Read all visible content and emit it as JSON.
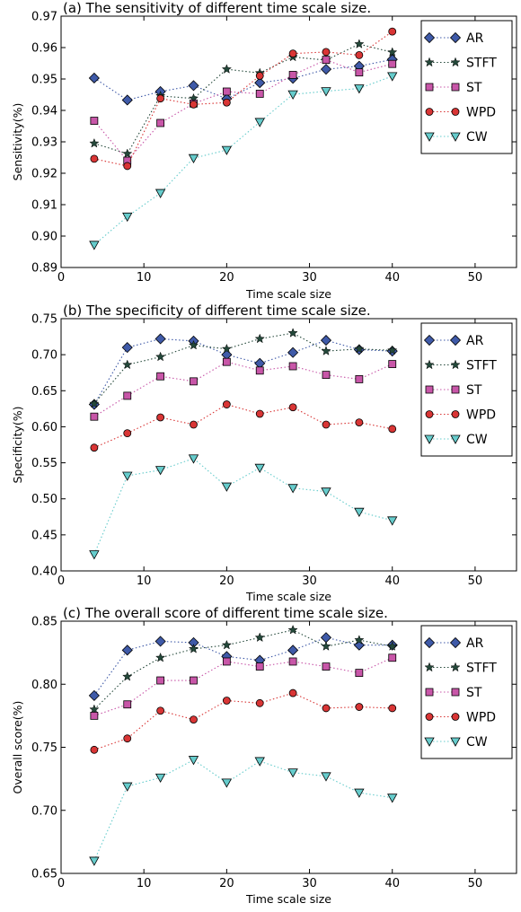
{
  "legend": {
    "placement": "upper-right",
    "labels": [
      "AR",
      "STFT",
      "ST",
      "WPD",
      "CW"
    ]
  },
  "series_style": {
    "AR": {
      "color": "#3f5aa8",
      "marker": "diamond"
    },
    "STFT": {
      "color": "#24483a",
      "marker": "star"
    },
    "ST": {
      "color": "#c856a8",
      "marker": "square"
    },
    "WPD": {
      "color": "#d93535",
      "marker": "circle"
    },
    "CW": {
      "color": "#66cccc",
      "marker": "triangle-down"
    }
  },
  "chart_data": [
    {
      "type": "line",
      "title": "(a) The sensitivity of different time scale size.",
      "xlabel": "Time scale size",
      "ylabel": "Sensitivity(%)",
      "xlim": [
        0,
        55
      ],
      "ylim": [
        0.89,
        0.97
      ],
      "xticks": [
        "0",
        "10",
        "20",
        "30",
        "40",
        "50"
      ],
      "yticks": [
        "0.89",
        "0.90",
        "0.91",
        "0.92",
        "0.93",
        "0.94",
        "0.95",
        "0.96",
        "0.97"
      ],
      "x": [
        4,
        8,
        12,
        16,
        20,
        24,
        28,
        32,
        36,
        40
      ],
      "series": [
        {
          "name": "AR",
          "values": [
            0.9503,
            0.9433,
            0.946,
            0.9479,
            0.9437,
            0.9488,
            0.9502,
            0.9531,
            0.9541,
            0.9562
          ]
        },
        {
          "name": "STFT",
          "values": [
            0.9295,
            0.9262,
            0.9446,
            0.9438,
            0.9531,
            0.9519,
            0.957,
            0.956,
            0.9611,
            0.9585
          ]
        },
        {
          "name": "ST",
          "values": [
            0.9367,
            0.924,
            0.936,
            0.9422,
            0.946,
            0.9453,
            0.9513,
            0.9561,
            0.9521,
            0.9548
          ]
        },
        {
          "name": "WPD",
          "values": [
            0.9246,
            0.9223,
            0.9438,
            0.9419,
            0.9425,
            0.951,
            0.9581,
            0.9586,
            0.9576,
            0.9651
          ]
        },
        {
          "name": "CW",
          "values": [
            0.8972,
            0.9062,
            0.9137,
            0.9248,
            0.9274,
            0.9363,
            0.9451,
            0.9461,
            0.947,
            0.9509
          ]
        }
      ]
    },
    {
      "type": "line",
      "title": "(b) The specificity of different time scale size.",
      "xlabel": "Time scale size",
      "ylabel": "Specificity(%)",
      "xlim": [
        0,
        55
      ],
      "ylim": [
        0.4,
        0.75
      ],
      "xticks": [
        "0",
        "10",
        "20",
        "30",
        "40",
        "50"
      ],
      "yticks": [
        "0.40",
        "0.45",
        "0.50",
        "0.55",
        "0.60",
        "0.65",
        "0.70",
        "0.75"
      ],
      "x": [
        4,
        8,
        12,
        16,
        20,
        24,
        28,
        32,
        36,
        40
      ],
      "series": [
        {
          "name": "AR",
          "values": [
            0.631,
            0.71,
            0.722,
            0.719,
            0.7,
            0.688,
            0.703,
            0.72,
            0.707,
            0.705
          ]
        },
        {
          "name": "STFT",
          "values": [
            0.632,
            0.686,
            0.697,
            0.713,
            0.708,
            0.722,
            0.73,
            0.705,
            0.708,
            0.706
          ]
        },
        {
          "name": "ST",
          "values": [
            0.614,
            0.643,
            0.67,
            0.663,
            0.69,
            0.678,
            0.684,
            0.672,
            0.666,
            0.687
          ]
        },
        {
          "name": "WPD",
          "values": [
            0.571,
            0.591,
            0.613,
            0.603,
            0.631,
            0.618,
            0.627,
            0.603,
            0.606,
            0.597
          ]
        },
        {
          "name": "CW",
          "values": [
            0.423,
            0.532,
            0.54,
            0.556,
            0.517,
            0.543,
            0.515,
            0.51,
            0.482,
            0.47
          ]
        }
      ]
    },
    {
      "type": "line",
      "title": "(c) The overall score of different time scale size.",
      "xlabel": "Time scale size",
      "ylabel": "Overall score(%)",
      "xlim": [
        0,
        55
      ],
      "ylim": [
        0.65,
        0.85
      ],
      "xticks": [
        "0",
        "10",
        "20",
        "30",
        "40",
        "50"
      ],
      "yticks": [
        "0.65",
        "0.70",
        "0.75",
        "0.80",
        "0.85"
      ],
      "x": [
        4,
        8,
        12,
        16,
        20,
        24,
        28,
        32,
        36,
        40
      ],
      "series": [
        {
          "name": "AR",
          "values": [
            0.791,
            0.827,
            0.834,
            0.833,
            0.822,
            0.819,
            0.827,
            0.837,
            0.831,
            0.831
          ]
        },
        {
          "name": "STFT",
          "values": [
            0.78,
            0.806,
            0.821,
            0.828,
            0.831,
            0.837,
            0.843,
            0.83,
            0.835,
            0.83
          ]
        },
        {
          "name": "ST",
          "values": [
            0.775,
            0.784,
            0.803,
            0.803,
            0.818,
            0.814,
            0.818,
            0.814,
            0.809,
            0.821
          ]
        },
        {
          "name": "WPD",
          "values": [
            0.748,
            0.757,
            0.779,
            0.772,
            0.787,
            0.785,
            0.793,
            0.781,
            0.782,
            0.781
          ]
        },
        {
          "name": "CW",
          "values": [
            0.66,
            0.719,
            0.726,
            0.74,
            0.722,
            0.739,
            0.73,
            0.727,
            0.714,
            0.71
          ]
        }
      ]
    }
  ]
}
